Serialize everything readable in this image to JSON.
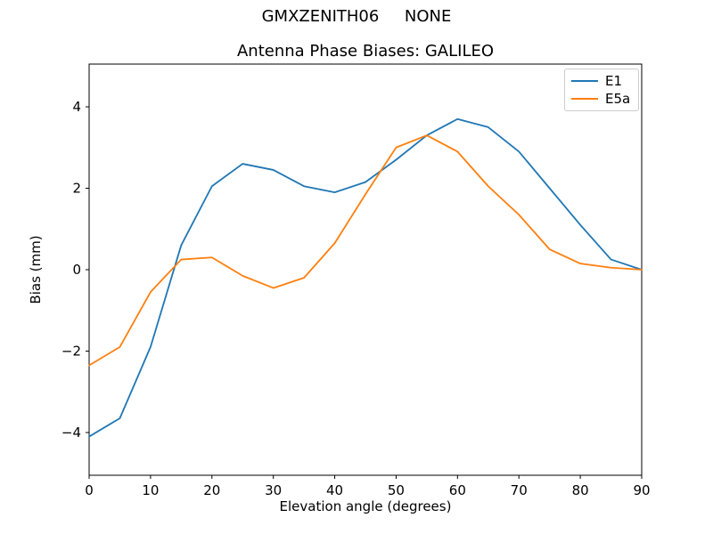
{
  "header": {
    "suptitle": "GMXZENITH06     NONE"
  },
  "chart_data": {
    "type": "line",
    "title": "Antenna Phase Biases: GALILEO",
    "xlabel": "Elevation angle (degrees)",
    "ylabel": "Bias (mm)",
    "xlim": [
      0,
      90
    ],
    "ylim": [
      -5.05,
      5.05
    ],
    "x_ticks": [
      0,
      10,
      20,
      30,
      40,
      50,
      60,
      70,
      80,
      90
    ],
    "y_ticks": [
      -4,
      -2,
      0,
      2,
      4
    ],
    "grid": false,
    "legend_position": "upper right",
    "x": [
      0,
      5,
      10,
      15,
      20,
      25,
      30,
      35,
      40,
      45,
      50,
      55,
      60,
      65,
      70,
      75,
      80,
      85,
      90
    ],
    "series": [
      {
        "name": "E1",
        "color": "#1f77b4",
        "values": [
          -4.1,
          -3.65,
          -1.9,
          0.6,
          2.05,
          2.6,
          2.45,
          2.05,
          1.9,
          2.15,
          2.7,
          3.3,
          3.7,
          3.5,
          2.9,
          2.0,
          1.1,
          0.25,
          0.0
        ]
      },
      {
        "name": "E5a",
        "color": "#ff7f0e",
        "values": [
          -2.35,
          -1.9,
          -0.55,
          0.25,
          0.3,
          -0.15,
          -0.45,
          -0.2,
          0.65,
          1.85,
          3.0,
          3.3,
          2.9,
          2.05,
          1.35,
          0.5,
          0.15,
          0.05,
          0.0
        ]
      }
    ]
  }
}
